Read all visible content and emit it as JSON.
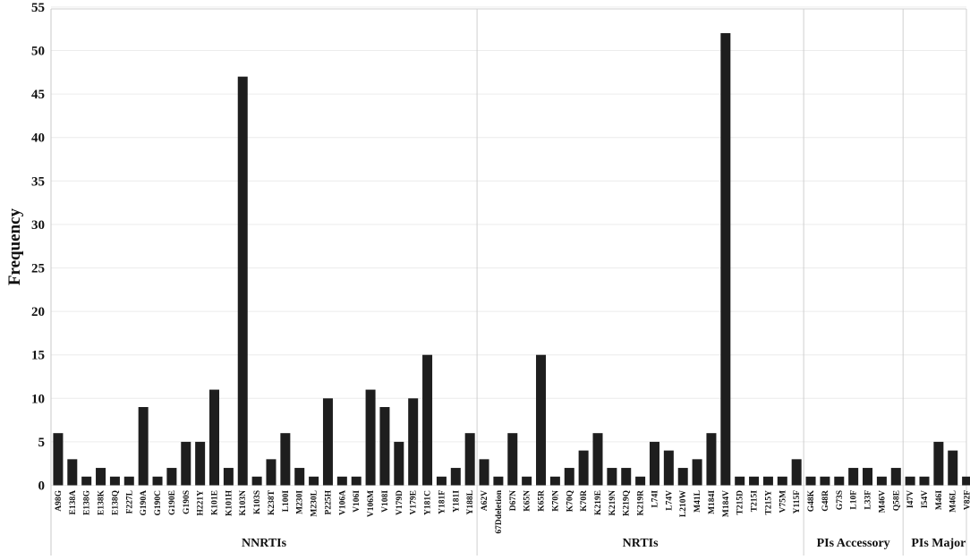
{
  "chart_data": {
    "type": "bar",
    "ylabel": "Frequency",
    "xlabel": "",
    "ylim": [
      0,
      56
    ],
    "yticks": [
      0,
      5,
      10,
      15,
      20,
      25,
      30,
      35,
      40,
      45,
      50,
      55
    ],
    "grid": "horizontal",
    "bar_color": "#1e1e1e",
    "groups": [
      {
        "name": "NNRTIs",
        "categories": [
          "A98G",
          "E138A",
          "E138G",
          "E138K",
          "E138Q",
          "F227L",
          "G190A",
          "G190C",
          "G190E",
          "G190S",
          "H221Y",
          "K101E",
          "K101H",
          "K103N",
          "K103S",
          "K238T",
          "L100I",
          "M230I",
          "M230L",
          "P225H",
          "V106A",
          "V106I",
          "V106M",
          "V108I",
          "V179D",
          "V179E",
          "Y181C",
          "Y181F",
          "Y181I",
          "Y188L"
        ],
        "values": [
          6,
          3,
          1,
          2,
          1,
          1,
          9,
          1,
          2,
          5,
          5,
          11,
          2,
          47,
          1,
          3,
          6,
          2,
          1,
          10,
          1,
          1,
          11,
          9,
          5,
          10,
          15,
          1,
          2,
          6
        ]
      },
      {
        "name": "NRTIs",
        "categories": [
          "A62V",
          "67Ddeletion",
          "D67N",
          "K65N",
          "K65R",
          "K70N",
          "K70Q",
          "K70R",
          "K219E",
          "K219N",
          "K219Q",
          "K219R",
          "L74I",
          "L74V",
          "L210W",
          "M41L",
          "M184I",
          "M184V",
          "T215D",
          "T215I",
          "T215Y",
          "V75M",
          "Y115F"
        ],
        "values": [
          3,
          1,
          6,
          1,
          15,
          1,
          2,
          4,
          6,
          2,
          2,
          1,
          5,
          4,
          2,
          3,
          6,
          52,
          1,
          1,
          1,
          1,
          3
        ]
      },
      {
        "name": "PIs Accessory",
        "categories": [
          "G48K",
          "G48R",
          "G73S",
          "L10F",
          "L33F",
          "M46V",
          "Q58E"
        ],
        "values": [
          1,
          1,
          1,
          2,
          2,
          1,
          2
        ]
      },
      {
        "name": "PIs Major",
        "categories": [
          "I47V",
          "I54V",
          "M46I",
          "M46L",
          "V82F"
        ],
        "values": [
          1,
          1,
          5,
          4,
          1
        ]
      }
    ]
  }
}
